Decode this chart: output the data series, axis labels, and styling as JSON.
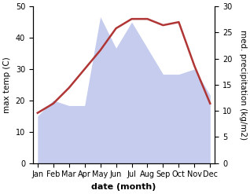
{
  "months": [
    "Jan",
    "Feb",
    "Mar",
    "Apr",
    "May",
    "Jun",
    "Jul",
    "Aug",
    "Sep",
    "Oct",
    "Nov",
    "Dec"
  ],
  "x": [
    0,
    1,
    2,
    3,
    4,
    5,
    6,
    7,
    8,
    9,
    10,
    11
  ],
  "temperature": [
    16,
    19,
    24,
    30,
    36,
    43,
    46,
    46,
    44,
    45,
    31,
    19
  ],
  "precip_right": [
    9,
    12,
    11,
    11,
    28,
    22,
    27,
    22,
    17,
    17,
    18,
    13
  ],
  "temp_color": "#b03535",
  "precip_fill_color": "#c5ccee",
  "background_color": "#ffffff",
  "left_ylabel": "max temp (C)",
  "right_ylabel": "med. precipitation (kg/m2)",
  "xlabel": "date (month)",
  "ylim_left": [
    0,
    50
  ],
  "ylim_right": [
    0,
    30
  ],
  "yticks_left": [
    0,
    10,
    20,
    30,
    40,
    50
  ],
  "yticks_right": [
    0,
    5,
    10,
    15,
    20,
    25,
    30
  ],
  "label_fontsize": 7.5,
  "tick_fontsize": 7,
  "xlabel_fontsize": 8,
  "linewidth": 1.8
}
